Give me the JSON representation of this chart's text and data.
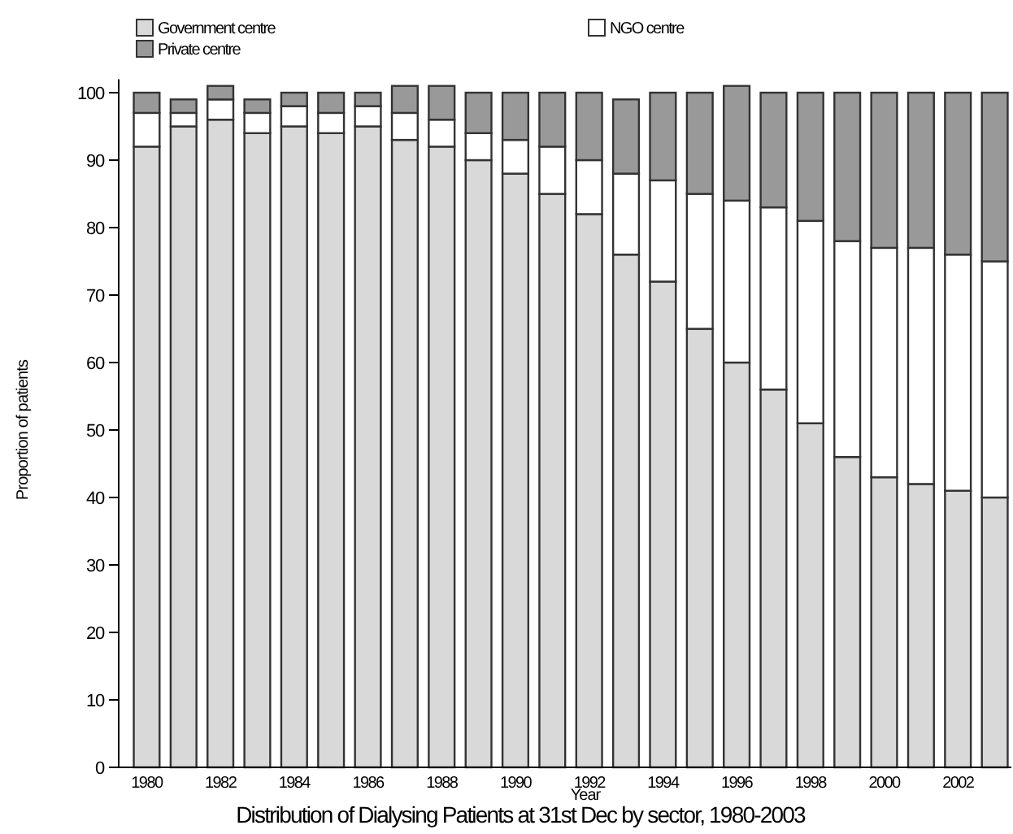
{
  "chart_data": {
    "type": "bar",
    "stacked": true,
    "title": "Distribution of Dialysing Patients at 31st Dec by sector, 1980-2003",
    "xlabel": "Year",
    "ylabel": "Proportion of patients",
    "categories": [
      "1980",
      null,
      "1982",
      null,
      "1984",
      null,
      "1986",
      null,
      "1988",
      null,
      "1990",
      null,
      "1992",
      null,
      "1994",
      null,
      "1996",
      null,
      "1998",
      null,
      "2000",
      null,
      "2002",
      null
    ],
    "series": [
      {
        "name": "Government centre",
        "color": "#d9d9d9",
        "values": [
          92,
          95,
          96,
          94,
          95,
          94,
          95,
          93,
          92,
          90,
          88,
          85,
          82,
          76,
          72,
          65,
          60,
          56,
          51,
          46,
          43,
          42,
          41,
          40
        ]
      },
      {
        "name": "NGO centre",
        "color": "#ffffff",
        "values": [
          5,
          2,
          3,
          3,
          3,
          3,
          3,
          4,
          4,
          4,
          5,
          7,
          8,
          12,
          15,
          20,
          24,
          27,
          30,
          32,
          34,
          35,
          35,
          35
        ]
      },
      {
        "name": "Private centre",
        "color": "#999999",
        "values": [
          3,
          2,
          2,
          2,
          2,
          3,
          2,
          4,
          5,
          6,
          7,
          8,
          10,
          11,
          13,
          15,
          17,
          17,
          19,
          22,
          23,
          23,
          24,
          25
        ]
      }
    ],
    "ylim": [
      0,
      102
    ],
    "yticks": [
      0,
      10,
      20,
      30,
      40,
      50,
      60,
      70,
      80,
      90,
      100
    ],
    "grid": false,
    "legend": "top left"
  }
}
